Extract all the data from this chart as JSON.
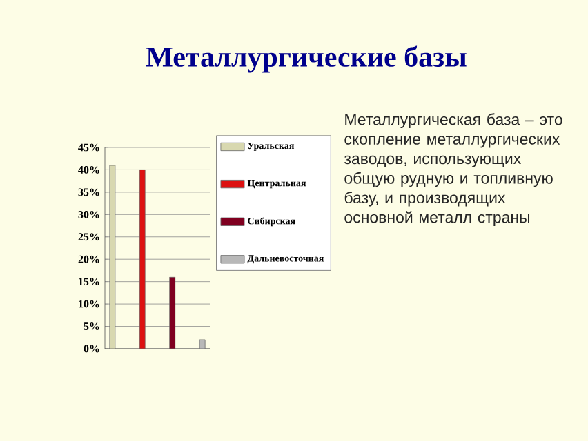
{
  "chart_data": {
    "type": "bar",
    "title": "Металлургические базы",
    "categories": [
      null,
      null,
      null,
      null
    ],
    "series": [
      {
        "name": "Уральская",
        "color": "#d8d8b0",
        "values": [
          41,
          null,
          null,
          null
        ]
      },
      {
        "name": "Центральная",
        "color": "#dd1111",
        "values": [
          null,
          40,
          null,
          null
        ]
      },
      {
        "name": "Сибирская",
        "color": "#800020",
        "values": [
          null,
          null,
          16,
          null
        ]
      },
      {
        "name": "Дальневосточная",
        "color": "#b8b8b8",
        "values": [
          null,
          null,
          null,
          2
        ]
      }
    ],
    "ylim": [
      0,
      45
    ],
    "yticks": [
      {
        "value": 0,
        "label": "0%"
      },
      {
        "value": 5,
        "label": "5%"
      },
      {
        "value": 10,
        "label": "10%"
      },
      {
        "value": 15,
        "label": "15%"
      },
      {
        "value": 20,
        "label": "20%"
      },
      {
        "value": 25,
        "label": "25%"
      },
      {
        "value": 30,
        "label": "30%"
      },
      {
        "value": 35,
        "label": "35%"
      },
      {
        "value": 40,
        "label": "40%"
      },
      {
        "value": 45,
        "label": "45%"
      }
    ],
    "grid": "y",
    "legend": "right",
    "annotations": [
      "Металлургическая база – это скопление металлургических заводов, использующих общую рудную и топливную базу, и производящих основной металл страны"
    ]
  }
}
